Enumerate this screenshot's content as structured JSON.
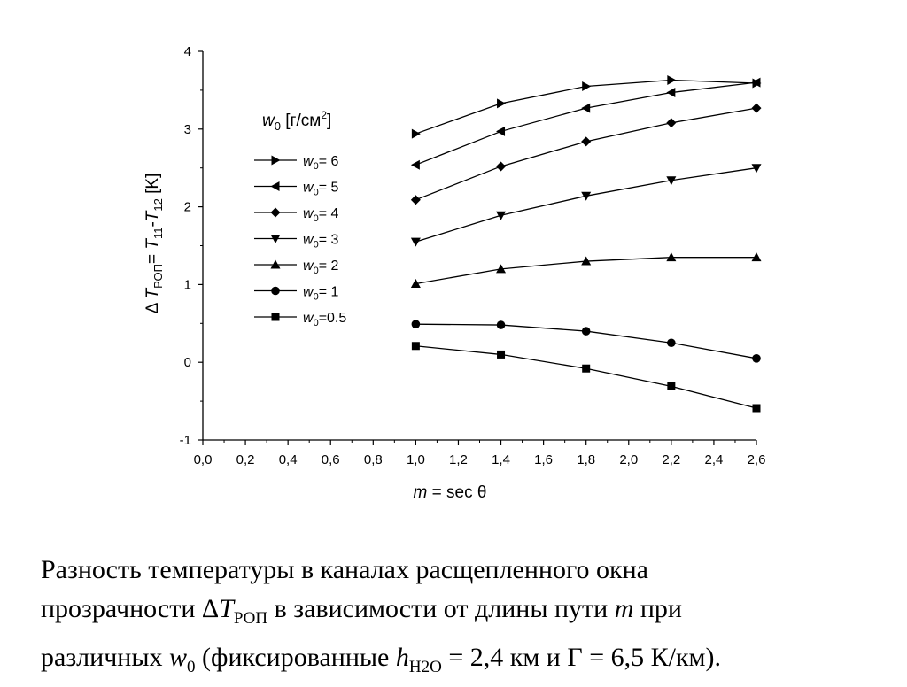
{
  "chart_data": {
    "type": "line",
    "xlabel": {
      "var": "m",
      "rest": " = sec θ"
    },
    "ylabel": {
      "delta": "Δ",
      "T": "T",
      "sub1": "РОП",
      "eq": "= ",
      "T11": "T",
      "sub11": "11",
      "dash": "-",
      "T12": "T",
      "sub12": "12",
      "unit": "[K]"
    },
    "xlim": [
      0,
      2.6
    ],
    "ylim": [
      -1,
      4
    ],
    "xticks": [
      "0,0",
      "0,2",
      "0,4",
      "0,6",
      "0,8",
      "1,0",
      "1,2",
      "1,4",
      "1,6",
      "1,8",
      "2,0",
      "2,2",
      "2,4",
      "2,6"
    ],
    "yticks": [
      "-1",
      "0",
      "1",
      "2",
      "3",
      "4"
    ],
    "grid": false,
    "legend_position": "left-inside",
    "legend_title": {
      "var": "w",
      "sub": "0",
      "unit": "[г/см",
      "sup": "2",
      "close": "]"
    },
    "x": [
      1.0,
      1.4,
      1.8,
      2.2,
      2.6
    ],
    "series": [
      {
        "name": "w0= 6",
        "label_var": "w",
        "label_sub": "0",
        "label_rest": "= 6",
        "marker": "triangle-right",
        "values": [
          2.94,
          3.33,
          3.55,
          3.63,
          3.59
        ]
      },
      {
        "name": "w0= 5",
        "label_var": "w",
        "label_sub": "0",
        "label_rest": "= 5",
        "marker": "triangle-left",
        "values": [
          2.54,
          2.97,
          3.27,
          3.47,
          3.6
        ]
      },
      {
        "name": "w0= 4",
        "label_var": "w",
        "label_sub": "0",
        "label_rest": "= 4",
        "marker": "diamond",
        "values": [
          2.09,
          2.52,
          2.84,
          3.08,
          3.27
        ]
      },
      {
        "name": "w0= 3",
        "label_var": "w",
        "label_sub": "0",
        "label_rest": "= 3",
        "marker": "triangle-down",
        "values": [
          1.55,
          1.89,
          2.14,
          2.34,
          2.5
        ]
      },
      {
        "name": "w0= 2",
        "label_var": "w",
        "label_sub": "0",
        "label_rest": "= 2",
        "marker": "triangle-up",
        "values": [
          1.01,
          1.2,
          1.3,
          1.35,
          1.35
        ]
      },
      {
        "name": "w0= 1",
        "label_var": "w",
        "label_sub": "0",
        "label_rest": "= 1",
        "marker": "circle",
        "values": [
          0.49,
          0.48,
          0.4,
          0.25,
          0.05
        ]
      },
      {
        "name": "w0=0.5",
        "label_var": "w",
        "label_sub": "0",
        "label_rest": "=0.5",
        "marker": "square",
        "values": [
          0.21,
          0.1,
          -0.08,
          -0.31,
          -0.59
        ]
      }
    ]
  },
  "caption": {
    "line1": "Разность температуры в каналах расщепленного окна",
    "line2_a": "прозрачности ",
    "line2_delta": "Δ",
    "line2_T": "T",
    "line2_sub": "РОП",
    "line2_b": " в зависимости от длины пути ",
    "line2_m": "m",
    "line2_c": " при",
    "line3_a": "различных ",
    "line3_w": "w",
    "line3_wsub": "0",
    "line3_b": " (фиксированные ",
    "line3_h": "h",
    "line3_hsub": "H2O",
    "line3_c": " = 2,4 км и Γ = 6,5 К/км)."
  }
}
